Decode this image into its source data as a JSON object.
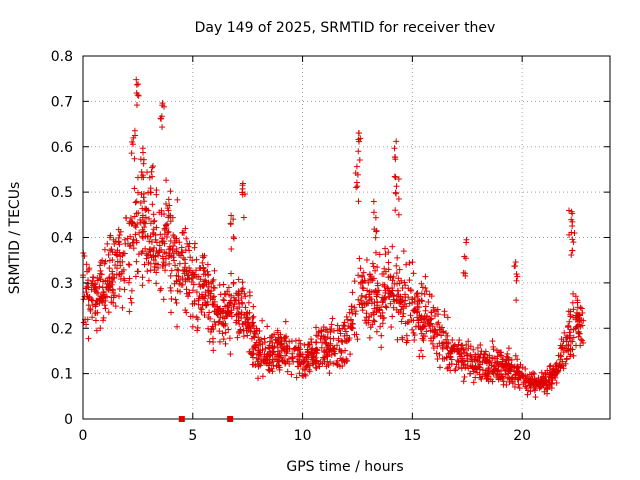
{
  "chart_data": {
    "type": "scatter",
    "title": "Day 149 of 2025, SRMTID for receiver thev",
    "xlabel": "GPS time / hours",
    "ylabel": "SRMTID / TECUs",
    "xlim": [
      0,
      24
    ],
    "ylim": [
      0,
      0.8
    ],
    "xticks": [
      0,
      5,
      10,
      15,
      20
    ],
    "yticks": [
      0,
      0.1,
      0.2,
      0.3,
      0.4,
      0.5,
      0.6,
      0.7,
      0.8
    ],
    "xtick_labels": [
      "0",
      "5",
      "10",
      "15",
      "20"
    ],
    "ytick_labels": [
      "0",
      "0.1",
      "0.2",
      "0.3",
      "0.4",
      "0.5",
      "0.6",
      "0.7",
      "0.8"
    ],
    "grid": true,
    "marker": "plus",
    "color": "#e00000",
    "baseline_markers": [
      4.5,
      6.7
    ],
    "envelope": [
      [
        0.0,
        0.32
      ],
      [
        0.5,
        0.25
      ],
      [
        1.0,
        0.3
      ],
      [
        1.5,
        0.32
      ],
      [
        2.0,
        0.36
      ],
      [
        2.5,
        0.42
      ],
      [
        3.0,
        0.4
      ],
      [
        3.5,
        0.38
      ],
      [
        4.0,
        0.37
      ],
      [
        4.5,
        0.33
      ],
      [
        5.0,
        0.3
      ],
      [
        5.5,
        0.29
      ],
      [
        6.0,
        0.24
      ],
      [
        6.5,
        0.23
      ],
      [
        7.0,
        0.25
      ],
      [
        7.5,
        0.22
      ],
      [
        8.0,
        0.15
      ],
      [
        8.5,
        0.14
      ],
      [
        9.0,
        0.16
      ],
      [
        9.5,
        0.15
      ],
      [
        10.0,
        0.13
      ],
      [
        10.5,
        0.14
      ],
      [
        11.0,
        0.16
      ],
      [
        11.5,
        0.15
      ],
      [
        12.0,
        0.18
      ],
      [
        12.5,
        0.26
      ],
      [
        13.0,
        0.28
      ],
      [
        13.5,
        0.27
      ],
      [
        14.0,
        0.3
      ],
      [
        14.5,
        0.26
      ],
      [
        15.0,
        0.25
      ],
      [
        15.5,
        0.22
      ],
      [
        16.0,
        0.2
      ],
      [
        16.5,
        0.16
      ],
      [
        17.0,
        0.14
      ],
      [
        17.5,
        0.13
      ],
      [
        18.0,
        0.12
      ],
      [
        18.5,
        0.12
      ],
      [
        19.0,
        0.12
      ],
      [
        19.5,
        0.11
      ],
      [
        20.0,
        0.09
      ],
      [
        20.5,
        0.08
      ],
      [
        21.0,
        0.08
      ],
      [
        21.5,
        0.1
      ],
      [
        22.0,
        0.17
      ],
      [
        22.5,
        0.22
      ],
      [
        22.8,
        0.2
      ]
    ],
    "bursts": [
      [
        2.3,
        0.64
      ],
      [
        2.5,
        0.77
      ],
      [
        2.7,
        0.62
      ],
      [
        3.1,
        0.57
      ],
      [
        3.6,
        0.73
      ],
      [
        3.8,
        0.48
      ],
      [
        7.3,
        0.53
      ],
      [
        6.8,
        0.46
      ],
      [
        12.6,
        0.64
      ],
      [
        12.5,
        0.56
      ],
      [
        14.2,
        0.62
      ],
      [
        14.3,
        0.54
      ],
      [
        13.3,
        0.48
      ],
      [
        17.4,
        0.4
      ],
      [
        19.7,
        0.35
      ],
      [
        22.2,
        0.49
      ],
      [
        22.3,
        0.44
      ]
    ],
    "point_count": 2000
  }
}
